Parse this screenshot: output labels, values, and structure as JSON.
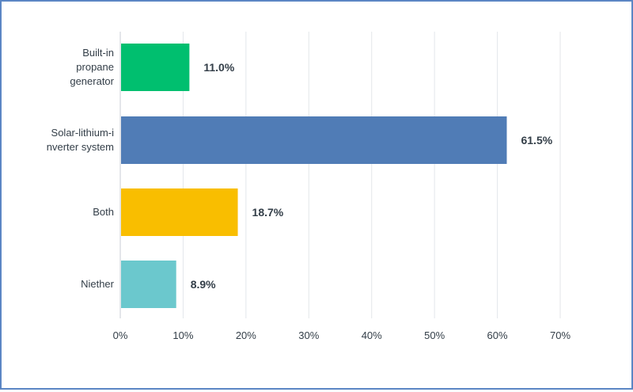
{
  "chart_data": {
    "type": "bar",
    "orientation": "horizontal",
    "categories": [
      [
        "Built-in",
        "propane",
        "generator"
      ],
      [
        "Solar-lithium-i",
        "nverter system"
      ],
      [
        "Both"
      ],
      [
        "Niether"
      ]
    ],
    "values": [
      11.0,
      61.5,
      18.7,
      8.9
    ],
    "value_labels": [
      "11.0%",
      "61.5%",
      "18.7%",
      "8.9%"
    ],
    "colors": [
      "#00bf6f",
      "#507cb6",
      "#f9be00",
      "#6bc8cd"
    ],
    "xlim": [
      0,
      70
    ],
    "xticks": [
      0,
      10,
      20,
      30,
      40,
      50,
      60,
      70
    ],
    "xtick_labels": [
      "0%",
      "10%",
      "20%",
      "30%",
      "40%",
      "50%",
      "60%",
      "70%"
    ],
    "grid": true,
    "title": "",
    "xlabel": "",
    "ylabel": ""
  }
}
